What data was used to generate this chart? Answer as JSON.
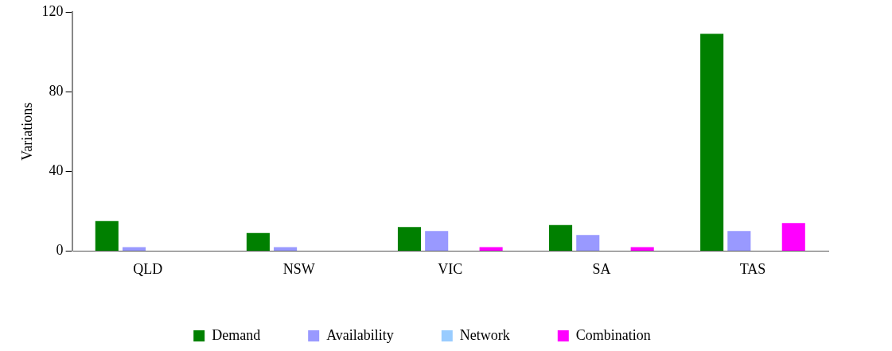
{
  "chart_data": {
    "type": "bar",
    "ylabel": "Variations",
    "categories": [
      "QLD",
      "NSW",
      "VIC",
      "SA",
      "TAS"
    ],
    "series": [
      {
        "name": "Demand",
        "color": "#008000",
        "values": [
          15,
          9,
          12,
          13,
          109
        ]
      },
      {
        "name": "Availability",
        "color": "#9999ff",
        "values": [
          2,
          2,
          10,
          8,
          10
        ]
      },
      {
        "name": "Network",
        "color": "#99ccff",
        "values": [
          0,
          0,
          0,
          0,
          0
        ]
      },
      {
        "name": "Combination",
        "color": "#ff00ff",
        "values": [
          0,
          0,
          2,
          2,
          14
        ]
      }
    ],
    "ylim": [
      0,
      120
    ],
    "yticks": [
      0,
      40,
      80,
      120
    ],
    "grid": false,
    "legend": "bottom"
  }
}
